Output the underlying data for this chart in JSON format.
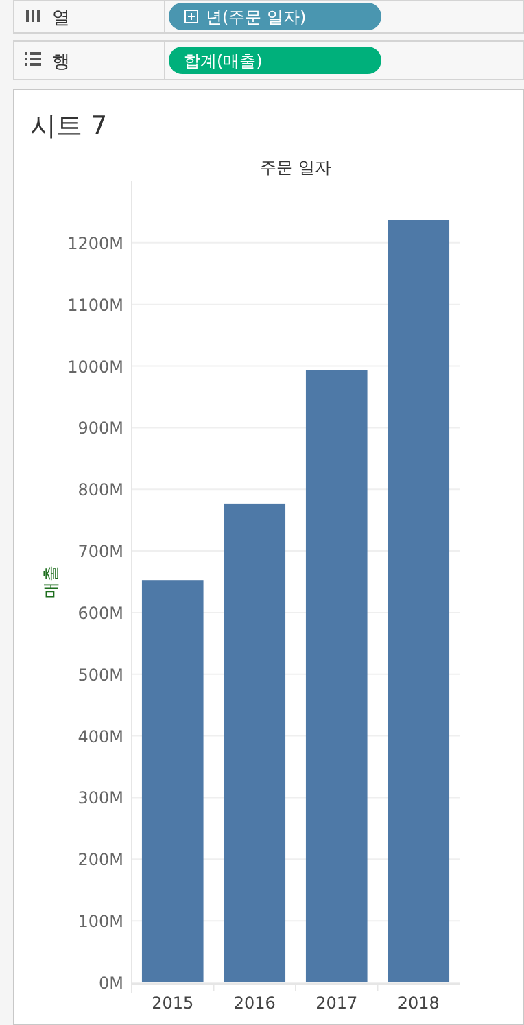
{
  "chart_data": {
    "type": "bar",
    "title": "시트 7",
    "xlabel": "주문 일자",
    "ylabel": "매출",
    "annotations": [
      "열",
      "년(주문 일자)",
      "행",
      "합계(매출)"
    ],
    "categories": [
      "2015",
      "2016",
      "2017",
      "2018"
    ],
    "values": [
      652,
      777,
      993,
      1237
    ],
    "color": "#4e79a7",
    "ylim": [
      0,
      1300
    ],
    "yticks": [
      {
        "value": 0,
        "label": "0M"
      },
      {
        "value": 100,
        "label": "100M"
      },
      {
        "value": 200,
        "label": "200M"
      },
      {
        "value": 300,
        "label": "300M"
      },
      {
        "value": 400,
        "label": "400M"
      },
      {
        "value": 500,
        "label": "500M"
      },
      {
        "value": 600,
        "label": "600M"
      },
      {
        "value": 700,
        "label": "700M"
      },
      {
        "value": 800,
        "label": "800M"
      },
      {
        "value": 900,
        "label": "900M"
      },
      {
        "value": 1000,
        "label": "1000M"
      },
      {
        "value": 1100,
        "label": "1100M"
      },
      {
        "value": 1200,
        "label": "1200M"
      }
    ],
    "grid": "y"
  }
}
